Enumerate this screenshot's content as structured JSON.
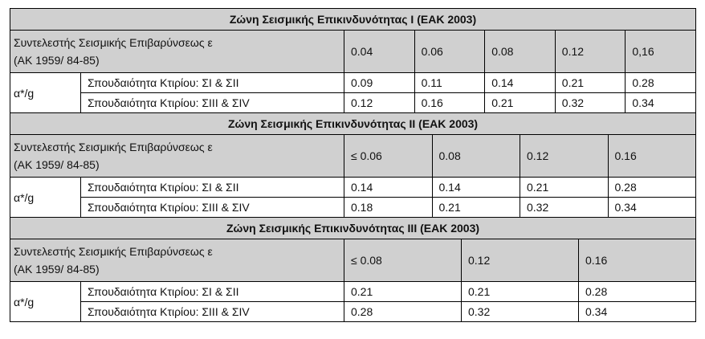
{
  "sections": [
    {
      "title": "Ζώνη Σεισμικής Επικινδυνότητας Ι (ΕΑΚ 2003)",
      "header": {
        "label_line1": "Συντελεστής Σεισμικής Επιβαρύνσεως ε",
        "label_line2": "(ΑΚ 1959/ 84-85)",
        "values": [
          "0.04",
          "0.06",
          "0.08",
          "0.12",
          "0,16"
        ]
      },
      "group_label": "α*/g",
      "rows": [
        {
          "label": "Σπουδαιότητα Κτιρίου: ΣΙ & ΣΙΙ",
          "values": [
            "0.09",
            "0.11",
            "0.14",
            "0.21",
            "0.28"
          ]
        },
        {
          "label": "Σπουδαιότητα Κτιρίου: ΣΙΙΙ & ΣΙV",
          "values": [
            "0.12",
            "0.16",
            "0.21",
            "0.32",
            "0.34"
          ]
        }
      ]
    },
    {
      "title": "Ζώνη Σεισμικής Επικινδυνότητας ΙΙ (ΕΑΚ 2003)",
      "header": {
        "label_line1": "Συντελεστής Σεισμικής Επιβαρύνσεως ε",
        "label_line2": "(ΑΚ 1959/ 84-85)",
        "values": [
          "≤ 0.06",
          "0.08",
          "0.12",
          "0.16"
        ]
      },
      "group_label": "α*/g",
      "rows": [
        {
          "label": "Σπουδαιότητα Κτιρίου: ΣΙ & ΣΙΙ",
          "values": [
            "0.14",
            "0.14",
            "0.21",
            "0.28"
          ]
        },
        {
          "label": "Σπουδαιότητα Κτιρίου: ΣΙΙΙ & ΣΙV",
          "values": [
            "0.18",
            "0.21",
            "0.32",
            "0.34"
          ]
        }
      ]
    },
    {
      "title": "Ζώνη Σεισμικής Επικινδυνότητας ΙΙΙ (ΕΑΚ 2003)",
      "header": {
        "label_line1": "Συντελεστής Σεισμικής Επιβαρύνσεως ε",
        "label_line2": "(ΑΚ 1959/ 84-85)",
        "values": [
          "≤ 0.08",
          "0.12",
          "0.16"
        ]
      },
      "group_label": "α*/g",
      "rows": [
        {
          "label": "Σπουδαιότητα Κτιρίου: ΣΙ & ΣΙΙ",
          "values": [
            "0.21",
            "0.21",
            "0.28"
          ]
        },
        {
          "label": "Σπουδαιότητα Κτιρίου: ΣΙΙΙ & ΣΙV",
          "values": [
            "0.28",
            "0.32",
            "0.34"
          ]
        }
      ]
    }
  ]
}
